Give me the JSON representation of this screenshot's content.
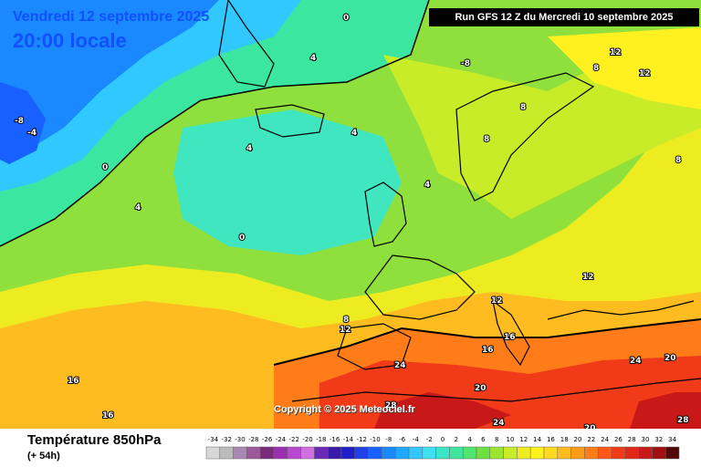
{
  "header": {
    "date": "Vendredi 12 septembre 2025",
    "time": "20:00 locale",
    "run": "Run GFS 12 Z du Mercredi 10 septembre 2025"
  },
  "map": {
    "copyright": "Copyright © 2025 Meteociel.fr",
    "isotherm_labels": [
      "-8",
      "-4",
      "0",
      "4",
      "8",
      "12",
      "16",
      "20",
      "24",
      "28"
    ]
  },
  "footer": {
    "title": "Température 850hPa",
    "subtitle": "(+ 54h)"
  },
  "legend": {
    "values": [
      "-34",
      "-32",
      "-30",
      "-28",
      "-26",
      "-24",
      "-22",
      "-20",
      "-18",
      "-16",
      "-14",
      "-12",
      "-10",
      "-8",
      "-6",
      "-4",
      "-2",
      "0",
      "2",
      "4",
      "6",
      "8",
      "10",
      "12",
      "14",
      "16",
      "18",
      "20",
      "22",
      "24",
      "26",
      "28",
      "30",
      "32",
      "34"
    ],
    "colors": [
      "#d8d8d8",
      "#bcbcbc",
      "#a888b0",
      "#9a5a9a",
      "#7a2a7a",
      "#9a30b0",
      "#b848d0",
      "#d070e0",
      "#6a2ab8",
      "#3a1aa8",
      "#2020c8",
      "#2040e8",
      "#1860ff",
      "#1a88ff",
      "#20a8ff",
      "#30c8ff",
      "#40e0f0",
      "#3ae6c8",
      "#40e6a0",
      "#50e470",
      "#70e040",
      "#9ce430",
      "#c8ec28",
      "#ecec20",
      "#fff020",
      "#ffd820",
      "#ffbc20",
      "#ff9c18",
      "#ff7c18",
      "#ff5818",
      "#f03a18",
      "#e02818",
      "#c81818",
      "#a01010",
      "#500808"
    ]
  }
}
